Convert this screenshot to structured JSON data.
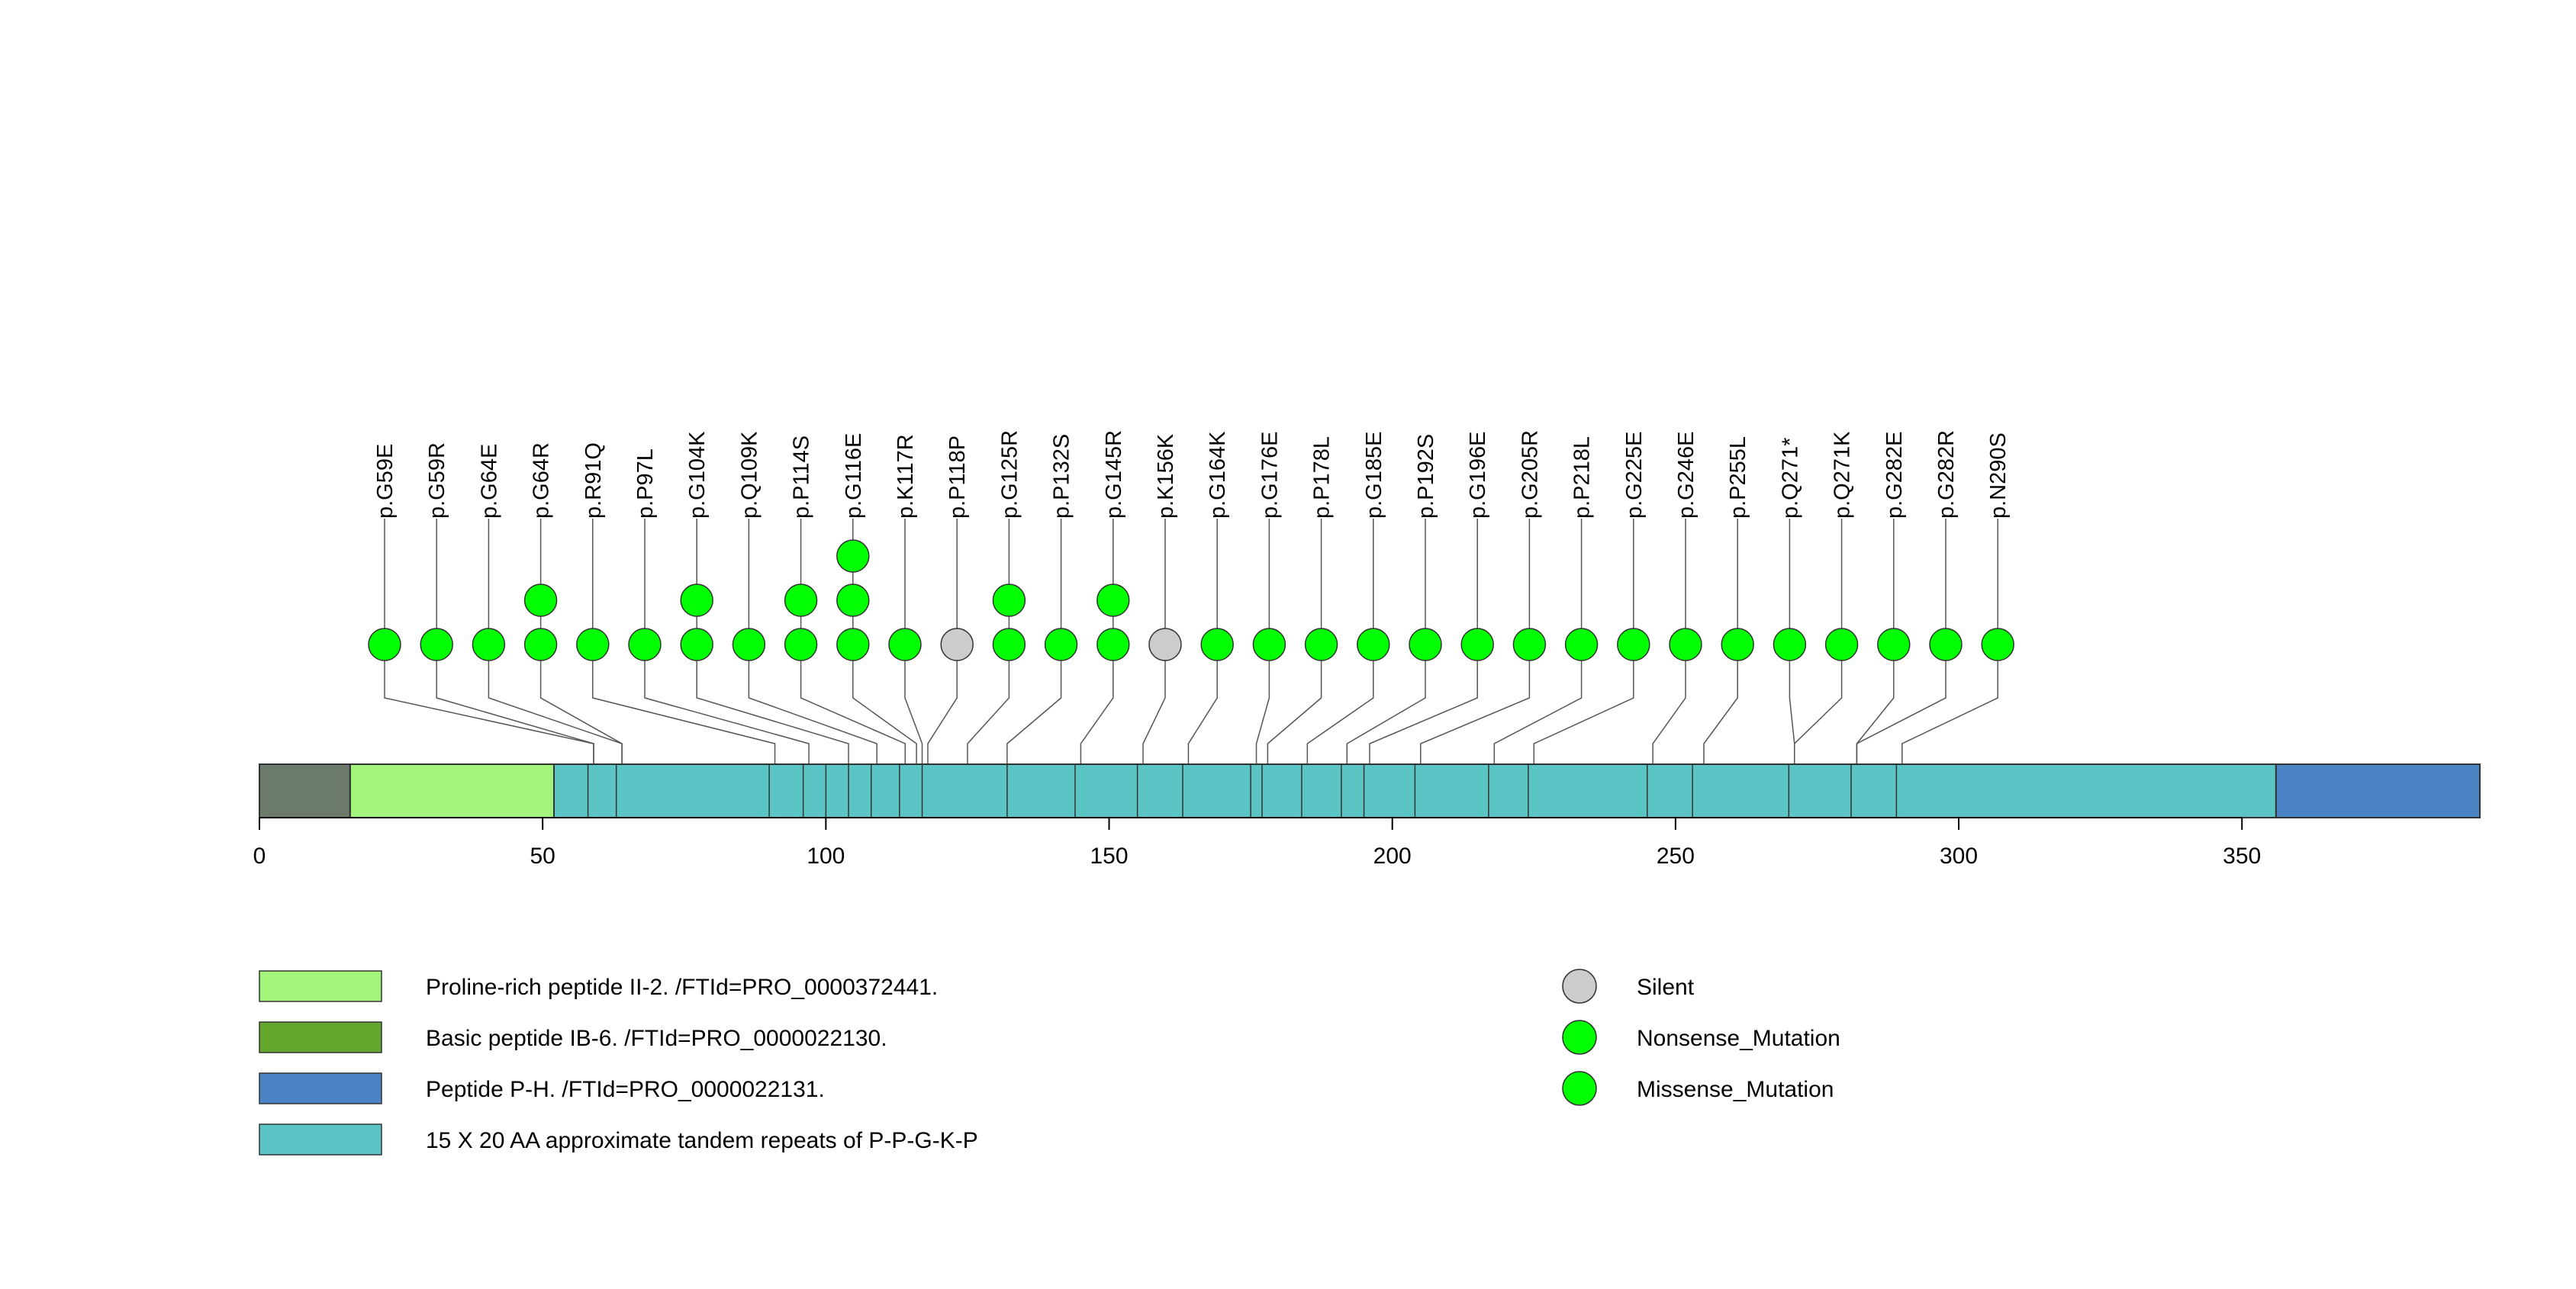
{
  "chart_data": {
    "type": "lollipop",
    "title": "",
    "xlabel": "",
    "ylabel": "",
    "xlim": [
      0,
      392
    ],
    "protein_length": 392,
    "axis_ticks": [
      0,
      50,
      100,
      150,
      200,
      250,
      300,
      350
    ],
    "domains": [
      {
        "name": "Proline-rich peptide II-2. /FTId=PRO_0000372441.",
        "start": 16,
        "end": 52,
        "color": "#a2f57a",
        "in_legend": true
      },
      {
        "name": "Basic peptide IB-6. /FTId=PRO_0000022130.",
        "start": 0,
        "end": 0,
        "color": "#63a72e",
        "in_legend": true
      },
      {
        "name": "Peptide P-H. /FTId=PRO_0000022131.",
        "start": 356,
        "end": 392,
        "color": "#4a84c4",
        "in_legend": true
      },
      {
        "name": "15 X 20 AA approximate tandem repeats of P-P-G-K-P",
        "start": 52,
        "end": 356,
        "color": "#5bc4c4",
        "in_legend": true
      },
      {
        "name": "",
        "start": 0,
        "end": 16,
        "color": "#6b7a6b",
        "in_legend": false
      }
    ],
    "repeat_boundaries": [
      58,
      63,
      90,
      96,
      100,
      104,
      108,
      113,
      117,
      132,
      144,
      155,
      163,
      175,
      177,
      184,
      191,
      195,
      204,
      217,
      224,
      245,
      253,
      270,
      281,
      289
    ],
    "mutations": [
      {
        "label": "p.G59E",
        "position": 59,
        "count": 1,
        "type": "Missense_Mutation"
      },
      {
        "label": "p.G59R",
        "position": 59,
        "count": 1,
        "type": "Missense_Mutation"
      },
      {
        "label": "p.G64E",
        "position": 64,
        "count": 1,
        "type": "Missense_Mutation"
      },
      {
        "label": "p.G64R",
        "position": 64,
        "count": 2,
        "type": "Missense_Mutation"
      },
      {
        "label": "p.R91Q",
        "position": 91,
        "count": 1,
        "type": "Missense_Mutation"
      },
      {
        "label": "p.P97L",
        "position": 97,
        "count": 1,
        "type": "Missense_Mutation"
      },
      {
        "label": "p.G104K",
        "position": 104,
        "count": 2,
        "type": "Missense_Mutation"
      },
      {
        "label": "p.Q109K",
        "position": 109,
        "count": 1,
        "type": "Missense_Mutation"
      },
      {
        "label": "p.P114S",
        "position": 114,
        "count": 2,
        "type": "Missense_Mutation"
      },
      {
        "label": "p.G116E",
        "position": 116,
        "count": 3,
        "type": "Missense_Mutation"
      },
      {
        "label": "p.K117R",
        "position": 117,
        "count": 1,
        "type": "Missense_Mutation"
      },
      {
        "label": "p.P118P",
        "position": 118,
        "count": 1,
        "type": "Silent"
      },
      {
        "label": "p.G125R",
        "position": 125,
        "count": 2,
        "type": "Missense_Mutation"
      },
      {
        "label": "p.P132S",
        "position": 132,
        "count": 1,
        "type": "Missense_Mutation"
      },
      {
        "label": "p.G145R",
        "position": 145,
        "count": 2,
        "type": "Missense_Mutation"
      },
      {
        "label": "p.K156K",
        "position": 156,
        "count": 1,
        "type": "Silent"
      },
      {
        "label": "p.G164K",
        "position": 164,
        "count": 1,
        "type": "Missense_Mutation"
      },
      {
        "label": "p.G176E",
        "position": 176,
        "count": 1,
        "type": "Missense_Mutation"
      },
      {
        "label": "p.P178L",
        "position": 178,
        "count": 1,
        "type": "Missense_Mutation"
      },
      {
        "label": "p.G185E",
        "position": 185,
        "count": 1,
        "type": "Missense_Mutation"
      },
      {
        "label": "p.P192S",
        "position": 192,
        "count": 1,
        "type": "Missense_Mutation"
      },
      {
        "label": "p.G196E",
        "position": 196,
        "count": 1,
        "type": "Missense_Mutation"
      },
      {
        "label": "p.G205R",
        "position": 205,
        "count": 1,
        "type": "Missense_Mutation"
      },
      {
        "label": "p.P218L",
        "position": 218,
        "count": 1,
        "type": "Missense_Mutation"
      },
      {
        "label": "p.G225E",
        "position": 225,
        "count": 1,
        "type": "Missense_Mutation"
      },
      {
        "label": "p.G246E",
        "position": 246,
        "count": 1,
        "type": "Missense_Mutation"
      },
      {
        "label": "p.P255L",
        "position": 255,
        "count": 1,
        "type": "Missense_Mutation"
      },
      {
        "label": "p.Q271*",
        "position": 271,
        "count": 1,
        "type": "Nonsense_Mutation"
      },
      {
        "label": "p.Q271K",
        "position": 271,
        "count": 1,
        "type": "Missense_Mutation"
      },
      {
        "label": "p.G282E",
        "position": 282,
        "count": 1,
        "type": "Missense_Mutation"
      },
      {
        "label": "p.G282R",
        "position": 282,
        "count": 1,
        "type": "Missense_Mutation"
      },
      {
        "label": "p.N290S",
        "position": 290,
        "count": 1,
        "type": "Missense_Mutation"
      }
    ],
    "mutation_legend": [
      {
        "label": "Silent",
        "color": "#cccccc"
      },
      {
        "label": "Nonsense_Mutation",
        "color": "#00ff00"
      },
      {
        "label": "Missense_Mutation",
        "color": "#00ff00"
      }
    ],
    "backbone_outline_color": "#333333"
  }
}
